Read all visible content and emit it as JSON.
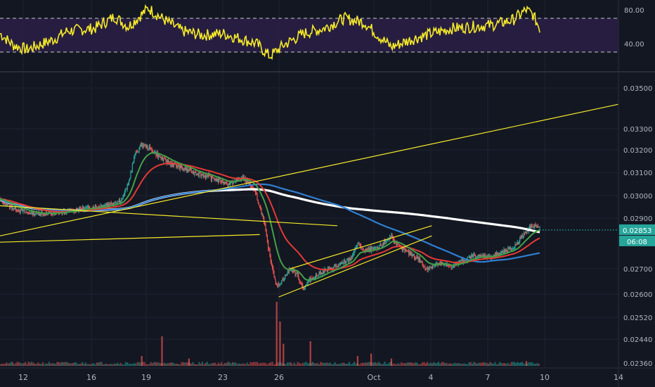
{
  "chart_data": {
    "type": "line",
    "x_ticks": [
      "12",
      "16",
      "19",
      "23",
      "26",
      "Oct",
      "4",
      "7",
      "10",
      "14"
    ],
    "rsi": {
      "y_ticks": [
        "80.00",
        "40.00"
      ],
      "ylim": [
        18,
        98
      ],
      "upper_band": 70,
      "lower_band": 30,
      "anchors": [
        [
          0,
          52
        ],
        [
          2,
          38
        ],
        [
          4,
          33
        ],
        [
          8,
          45
        ],
        [
          10,
          55
        ],
        [
          14,
          58
        ],
        [
          17,
          72
        ],
        [
          19,
          60
        ],
        [
          22,
          82
        ],
        [
          24,
          70
        ],
        [
          27,
          55
        ],
        [
          30,
          50
        ],
        [
          33,
          52
        ],
        [
          36,
          45
        ],
        [
          38,
          40
        ],
        [
          40,
          25
        ],
        [
          42,
          38
        ],
        [
          45,
          52
        ],
        [
          48,
          58
        ],
        [
          51,
          70
        ],
        [
          54,
          65
        ],
        [
          56,
          50
        ],
        [
          58,
          36
        ],
        [
          61,
          45
        ],
        [
          64,
          52
        ],
        [
          67,
          58
        ],
        [
          70,
          60
        ],
        [
          73,
          62
        ],
        [
          76,
          68
        ],
        [
          78,
          80
        ],
        [
          79,
          74
        ],
        [
          80,
          58
        ]
      ]
    },
    "price": {
      "y_ticks": [
        "0.03500",
        "0.03300",
        "0.03200",
        "0.03100",
        "0.03000",
        "0.02900",
        "0.02700",
        "0.02600",
        "0.02520",
        "0.02440",
        "0.02360"
      ],
      "current_price": "0.02853",
      "countdown": "06:08",
      "close": [
        [
          0,
          0.0298
        ],
        [
          2,
          0.02945
        ],
        [
          4,
          0.02925
        ],
        [
          6,
          0.0292
        ],
        [
          8,
          0.0292
        ],
        [
          10,
          0.0293
        ],
        [
          12,
          0.0294
        ],
        [
          14,
          0.0295
        ],
        [
          16,
          0.0296
        ],
        [
          18,
          0.0298
        ],
        [
          19,
          0.0305
        ],
        [
          20,
          0.0318
        ],
        [
          21,
          0.03225
        ],
        [
          22,
          0.0321
        ],
        [
          23,
          0.03185
        ],
        [
          24,
          0.0316
        ],
        [
          26,
          0.0313
        ],
        [
          28,
          0.0311
        ],
        [
          30,
          0.0309
        ],
        [
          32,
          0.0307
        ],
        [
          34,
          0.0305
        ],
        [
          36,
          0.0308
        ],
        [
          37,
          0.0305
        ],
        [
          38,
          0.03
        ],
        [
          39,
          0.029
        ],
        [
          40,
          0.0275
        ],
        [
          41,
          0.0263
        ],
        [
          42,
          0.0266
        ],
        [
          43,
          0.027
        ],
        [
          44,
          0.0268
        ],
        [
          45,
          0.0262
        ],
        [
          46,
          0.0266
        ],
        [
          48,
          0.0269
        ],
        [
          50,
          0.0271
        ],
        [
          52,
          0.0274
        ],
        [
          53,
          0.028
        ],
        [
          54,
          0.0277
        ],
        [
          56,
          0.0278
        ],
        [
          58,
          0.0283
        ],
        [
          59,
          0.0279
        ],
        [
          60,
          0.0277
        ],
        [
          62,
          0.0274
        ],
        [
          63,
          0.027
        ],
        [
          65,
          0.0272
        ],
        [
          67,
          0.0271
        ],
        [
          70,
          0.0275
        ],
        [
          73,
          0.0275
        ],
        [
          76,
          0.0278
        ],
        [
          78,
          0.0285
        ],
        [
          79,
          0.02875
        ],
        [
          80,
          0.0286
        ]
      ],
      "trend_lines": [
        [
          [
            0,
            0.02805
          ],
          [
            38.5,
            0.02835
          ]
        ],
        [
          [
            0,
            0.02955
          ],
          [
            50,
            0.0287
          ]
        ],
        [
          [
            0,
            0.0283
          ],
          [
            99,
            0.0342
          ]
        ],
        [
          [
            41.3,
            0.0259
          ],
          [
            64,
            0.0283
          ]
        ],
        [
          [
            43,
            0.027
          ],
          [
            64,
            0.0287
          ]
        ]
      ]
    },
    "volume": [
      [
        41,
        26
      ],
      [
        41.5,
        18
      ],
      [
        42,
        9
      ],
      [
        46,
        10
      ],
      [
        55,
        5
      ],
      [
        24,
        12
      ],
      [
        21,
        4
      ],
      [
        28,
        3
      ],
      [
        53,
        4
      ],
      [
        58,
        3
      ],
      [
        78,
        2
      ]
    ]
  }
}
